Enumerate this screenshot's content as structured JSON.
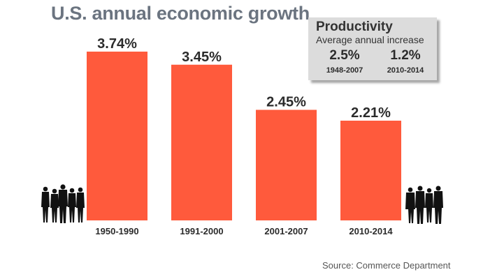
{
  "title": "U.S. annual economic growth",
  "chart_data": {
    "type": "bar",
    "categories": [
      "1950-1990",
      "1991-2000",
      "2001-2007",
      "2010-2014"
    ],
    "values": [
      3.74,
      3.45,
      2.45,
      2.21
    ],
    "value_labels": [
      "3.74%",
      "3.45%",
      "2.45%",
      "2.21%"
    ],
    "ylim": [
      0,
      3.74
    ],
    "grid": false,
    "bar_color": "#ff5a3c"
  },
  "productivity": {
    "title": "Productivity",
    "subtitle": "Average annual increase",
    "items": [
      {
        "value": "2.5%",
        "period": "1948-2007"
      },
      {
        "value": "1.2%",
        "period": "2010-2014"
      }
    ]
  },
  "source": "Source: Commerce Department",
  "icons": {
    "left": "people-silhouettes-icon",
    "right": "business-people-silhouettes-icon"
  }
}
